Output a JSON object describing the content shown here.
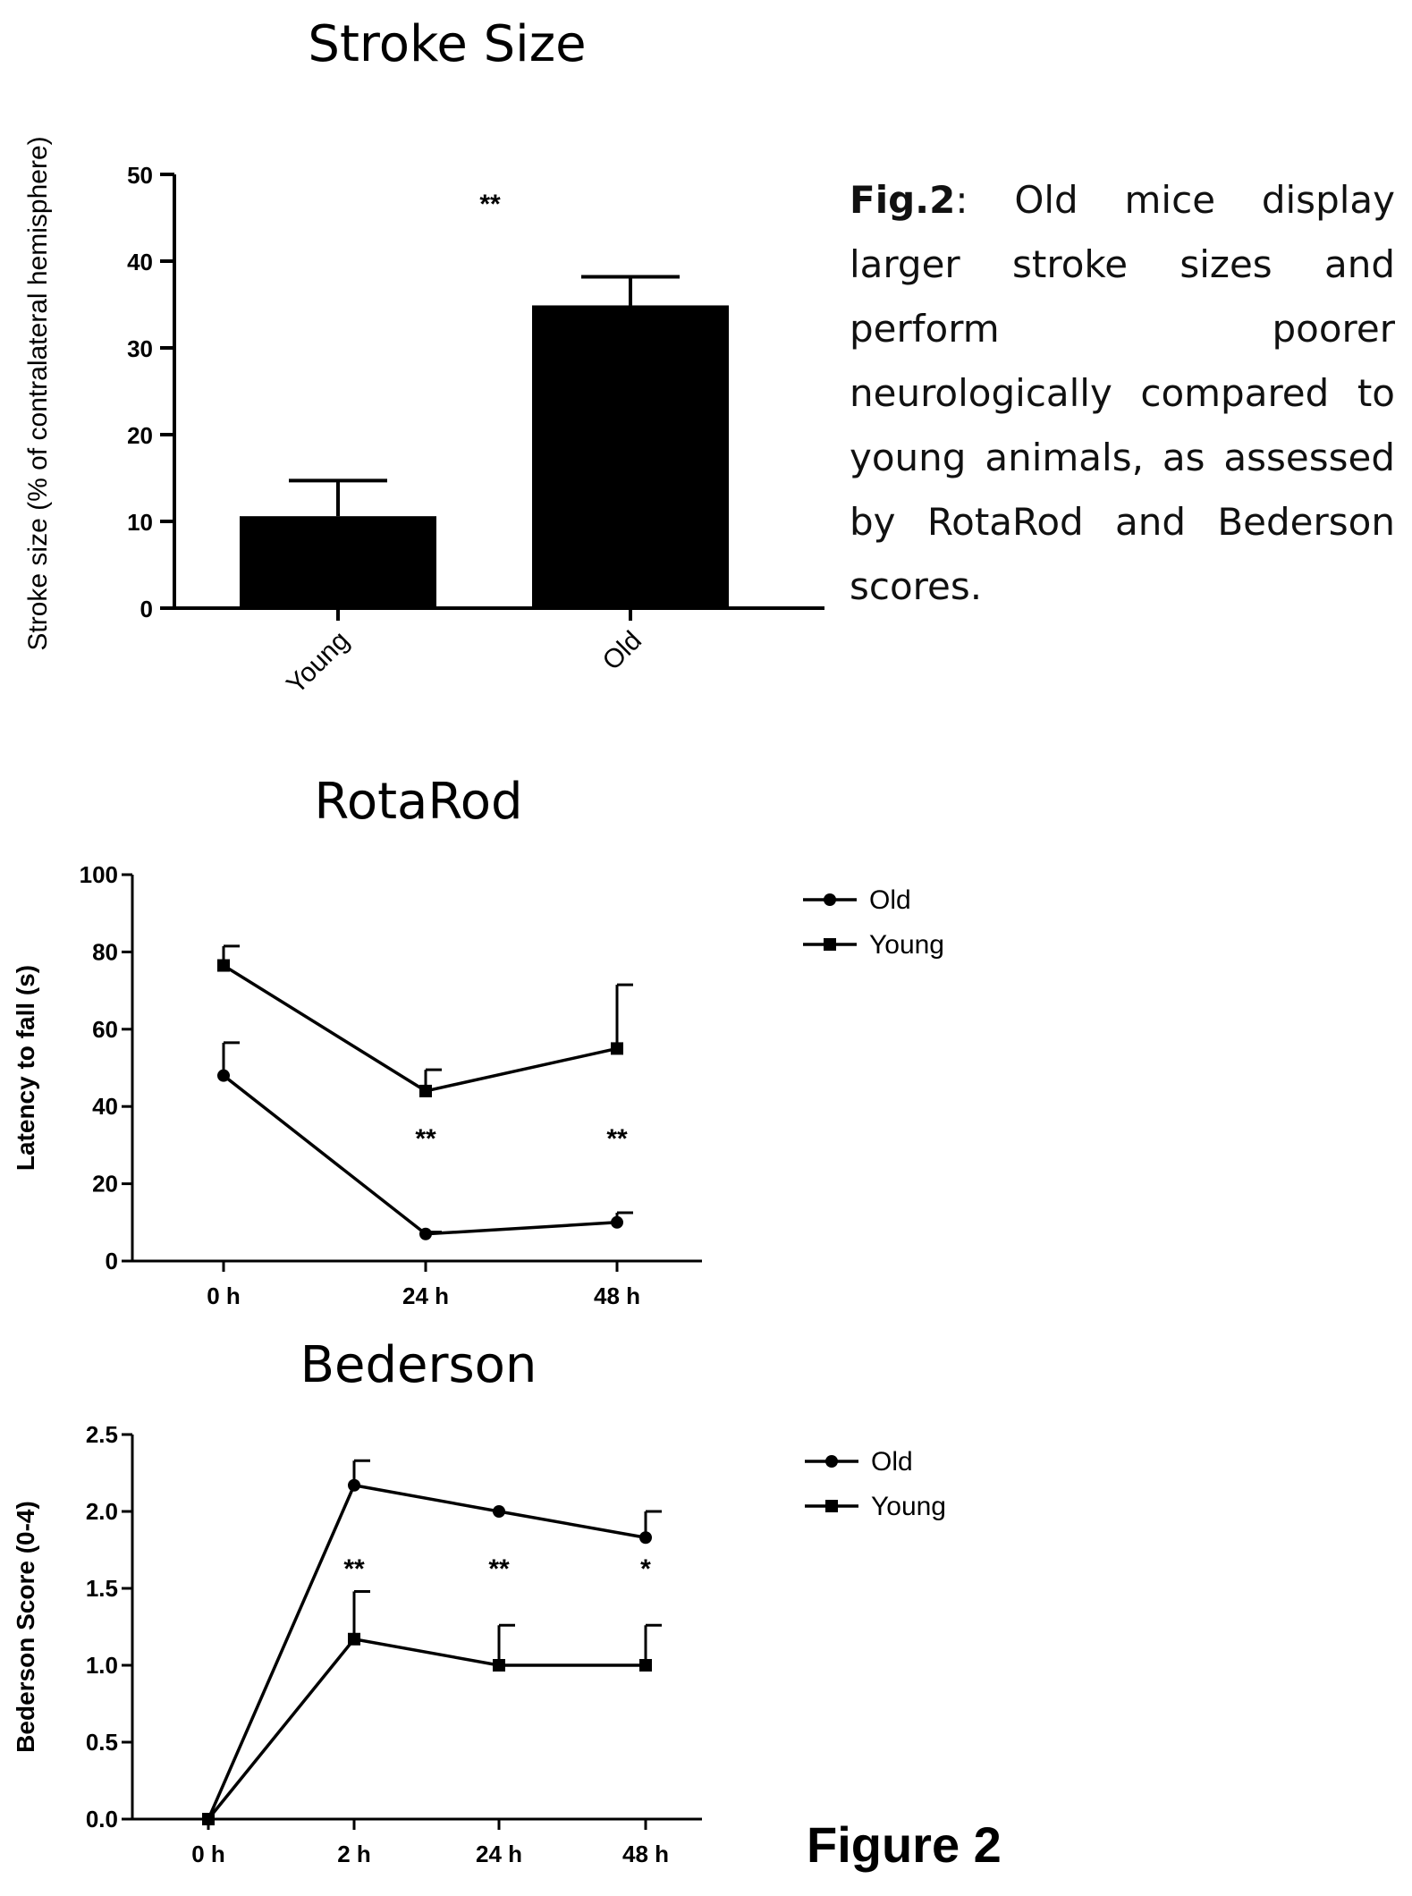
{
  "chart_data": [
    {
      "type": "bar",
      "title": "Stroke Size",
      "ylabel": "Stroke size (% of contralateral hemisphere)",
      "xlabel": "",
      "categories": [
        "Young",
        "Old"
      ],
      "values": [
        10.6,
        34.9
      ],
      "errors": [
        4.1,
        3.3
      ],
      "ylim": [
        0,
        50
      ],
      "yticks": [
        "0",
        "10",
        "20",
        "30",
        "40",
        "50"
      ],
      "significance": "**"
    },
    {
      "type": "line",
      "title": "RotaRod",
      "ylabel": "Latency to fall (s)",
      "xlabel": "",
      "categories": [
        "0 h",
        "24 h",
        "48 h"
      ],
      "ylim": [
        0,
        100
      ],
      "yticks": [
        "0",
        "20",
        "40",
        "60",
        "80",
        "100"
      ],
      "series": [
        {
          "name": "Old",
          "marker": "circle",
          "values": [
            48,
            7,
            10
          ],
          "errors": [
            8.5,
            0.5,
            2.5
          ]
        },
        {
          "name": "Young",
          "marker": "square",
          "values": [
            76.5,
            44,
            55
          ],
          "errors": [
            5,
            5.5,
            16.5
          ]
        }
      ],
      "significance": [
        "",
        "**",
        "**"
      ]
    },
    {
      "type": "line",
      "title": "Bederson",
      "ylabel": "Bederson Score (0-4)",
      "xlabel": "",
      "categories": [
        "0 h",
        "2 h",
        "24 h",
        "48 h"
      ],
      "ylim": [
        0,
        2.5
      ],
      "yticks": [
        "0.0",
        "0.5",
        "1.0",
        "1.5",
        "2.0",
        "2.5"
      ],
      "series": [
        {
          "name": "Old",
          "marker": "circle",
          "values": [
            0,
            2.17,
            2.0,
            1.83
          ],
          "errors": [
            0,
            0.16,
            0,
            0.17
          ]
        },
        {
          "name": "Young",
          "marker": "square",
          "values": [
            0,
            1.17,
            1.0,
            1.0
          ],
          "errors": [
            0,
            0.31,
            0.26,
            0.26
          ]
        }
      ],
      "significance": [
        "",
        "**",
        "**",
        "*"
      ]
    }
  ],
  "caption": {
    "bold": "Fig.2",
    "text": ": Old mice display larger stroke sizes and perform poorer neurologically compared to young animals, as assessed by RotaRod and Bederson scores."
  },
  "figure_label": "Figure 2"
}
